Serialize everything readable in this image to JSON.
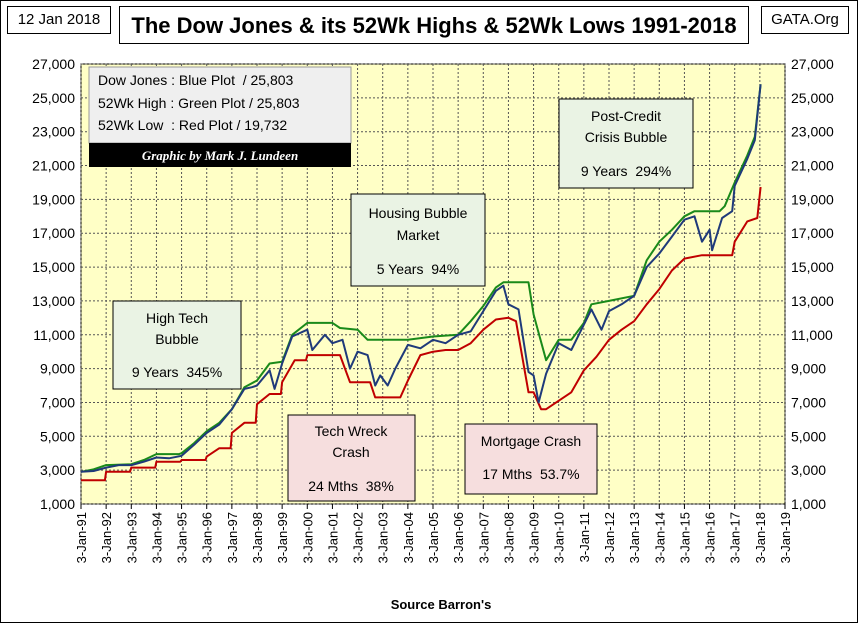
{
  "header": {
    "date": "12 Jan 2018",
    "title": "The Dow Jones & its 52Wk Highs & 52Wk Lows 1991-2018",
    "site": "GATA.Org"
  },
  "legend": {
    "lines": [
      "Dow Jones : Blue Plot  / 25,803",
      "52Wk High : Green Plot / 25,803",
      "52Wk Low  : Red Plot / 19,732"
    ],
    "credit": "Graphic by Mark J. Lundeen"
  },
  "annotations": {
    "high_tech": [
      "High Tech",
      "Bubble",
      "9 Years  345%"
    ],
    "housing": [
      "Housing Bubble",
      "Market",
      "5 Years  94%"
    ],
    "post_credit": [
      "Post-Credit",
      "Crisis Bubble",
      "9 Years  294%"
    ],
    "tech_wreck": [
      "Tech Wreck",
      "Crash",
      "24 Mths  38%"
    ],
    "mortgage": [
      "Mortgage Crash",
      "17 Mths  53.7%"
    ]
  },
  "colors": {
    "plot_bg": "#ffffc6",
    "dow": "#1f3a7a",
    "high": "#1a8a1a",
    "low": "#c00000",
    "note_green": "#eaf3e4",
    "note_pink": "#f6dede",
    "legend_bg": "#efefef"
  },
  "chart_data": {
    "type": "line",
    "xlabel": "Source Barron's",
    "ylabel": "",
    "ylim": [
      1000,
      27000
    ],
    "xlim": [
      1991,
      2019
    ],
    "grid": true,
    "y_ticks": [
      1000,
      3000,
      5000,
      7000,
      9000,
      11000,
      13000,
      15000,
      17000,
      19000,
      21000,
      23000,
      25000,
      27000
    ],
    "y_tick_labels": [
      "1,000",
      "3,000",
      "5,000",
      "7,000",
      "9,000",
      "11,000",
      "13,000",
      "15,000",
      "17,000",
      "19,000",
      "21,000",
      "23,000",
      "25,000",
      "27,000"
    ],
    "x_tick_labels": [
      "3-Jan-91",
      "3-Jan-92",
      "3-Jan-93",
      "3-Jan-94",
      "3-Jan-95",
      "3-Jan-96",
      "3-Jan-97",
      "3-Jan-98",
      "3-Jan-99",
      "3-Jan-00",
      "3-Jan-01",
      "3-Jan-02",
      "3-Jan-03",
      "3-Jan-04",
      "3-Jan-05",
      "3-Jan-06",
      "3-Jan-07",
      "3-Jan-08",
      "3-Jan-09",
      "3-Jan-10",
      "3-Jan-11",
      "3-Jan-12",
      "3-Jan-13",
      "3-Jan-14",
      "3-Jan-15",
      "3-Jan-16",
      "3-Jan-17",
      "3-Jan-18",
      "3-Jan-19"
    ],
    "series": [
      {
        "name": "Dow Jones",
        "x": [
          1991.0,
          1991.5,
          1992.0,
          1992.5,
          1993.0,
          1993.5,
          1994.0,
          1994.5,
          1995.0,
          1995.5,
          1996.0,
          1996.5,
          1997.0,
          1997.5,
          1997.8,
          1998.0,
          1998.5,
          1998.7,
          1999.0,
          1999.4,
          2000.0,
          2000.2,
          2000.7,
          2001.0,
          2001.4,
          2001.7,
          2002.0,
          2002.4,
          2002.7,
          2002.9,
          2003.2,
          2003.5,
          2004.0,
          2004.5,
          2005.0,
          2005.5,
          2006.0,
          2006.5,
          2007.0,
          2007.5,
          2007.8,
          2008.0,
          2008.4,
          2008.8,
          2009.0,
          2009.2,
          2009.5,
          2010.0,
          2010.5,
          2011.0,
          2011.3,
          2011.7,
          2012.0,
          2012.5,
          2013.0,
          2013.5,
          2014.0,
          2014.5,
          2015.0,
          2015.4,
          2015.7,
          2016.0,
          2016.1,
          2016.5,
          2016.9,
          2017.0,
          2017.5,
          2017.8,
          2018.03
        ],
        "y": [
          2900,
          2950,
          3150,
          3300,
          3300,
          3500,
          3750,
          3700,
          3850,
          4500,
          5200,
          5700,
          6600,
          7800,
          7900,
          8000,
          8900,
          7800,
          9300,
          10900,
          11300,
          10100,
          11000,
          10500,
          10700,
          9000,
          10000,
          9800,
          8000,
          8600,
          8000,
          9000,
          10400,
          10200,
          10700,
          10500,
          11000,
          11200,
          12400,
          13600,
          13900,
          12800,
          12500,
          8800,
          8600,
          7000,
          8700,
          10500,
          10100,
          11600,
          12500,
          11300,
          12400,
          12800,
          13300,
          15000,
          15800,
          16800,
          17800,
          18000,
          16500,
          17200,
          16000,
          17900,
          18300,
          19800,
          21400,
          22500,
          25803
        ]
      },
      {
        "name": "52Wk High",
        "x": [
          1991.0,
          1991.5,
          1992.0,
          1993.0,
          1993.5,
          1994.0,
          1994.9,
          1995.0,
          1995.5,
          1996.0,
          1996.5,
          1997.0,
          1997.5,
          1998.0,
          1998.5,
          1999.0,
          1999.4,
          2000.0,
          2001.0,
          2001.3,
          2002.0,
          2002.4,
          2003.0,
          2003.5,
          2004.0,
          2005.0,
          2006.0,
          2006.5,
          2007.0,
          2007.5,
          2007.8,
          2008.8,
          2009.0,
          2009.5,
          2010.0,
          2010.5,
          2011.0,
          2011.3,
          2012.0,
          2013.0,
          2013.5,
          2014.0,
          2014.5,
          2015.0,
          2015.4,
          2016.4,
          2016.6,
          2017.0,
          2017.5,
          2017.8,
          2018.03
        ],
        "y": [
          2900,
          3050,
          3300,
          3350,
          3600,
          3950,
          3950,
          4000,
          4600,
          5300,
          5800,
          6600,
          7900,
          8300,
          9300,
          9400,
          11000,
          11700,
          11700,
          11400,
          11300,
          10700,
          10700,
          10700,
          10700,
          10900,
          11000,
          11800,
          12700,
          13800,
          14100,
          14100,
          12200,
          9500,
          10700,
          10700,
          11700,
          12800,
          13000,
          13300,
          15400,
          16500,
          17200,
          18000,
          18300,
          18300,
          18600,
          20000,
          21600,
          22700,
          25803
        ]
      },
      {
        "name": "52Wk Low",
        "x": [
          1991.0,
          1991.95,
          1992.0,
          1992.95,
          1993.0,
          1993.95,
          1994.0,
          1994.95,
          1995.0,
          1995.95,
          1996.0,
          1996.5,
          1996.95,
          1997.0,
          1997.5,
          1997.95,
          1998.0,
          1998.5,
          1998.95,
          1999.0,
          1999.5,
          1999.95,
          2000.0,
          2001.3,
          2001.7,
          2002.5,
          2002.7,
          2003.7,
          2004.0,
          2004.5,
          2005.0,
          2005.5,
          2006.0,
          2006.5,
          2007.0,
          2007.5,
          2008.0,
          2008.3,
          2008.8,
          2009.0,
          2009.3,
          2009.5,
          2010.5,
          2011.0,
          2011.5,
          2012.0,
          2012.5,
          2013.0,
          2013.5,
          2014.0,
          2014.5,
          2015.0,
          2015.7,
          2016.3,
          2016.9,
          2017.0,
          2017.5,
          2017.9,
          2018.03
        ],
        "y": [
          2400,
          2400,
          2900,
          2900,
          3150,
          3150,
          3500,
          3500,
          3600,
          3600,
          3800,
          4300,
          4300,
          5200,
          5800,
          5800,
          6900,
          7500,
          7500,
          8200,
          9500,
          9500,
          9800,
          9800,
          8200,
          8200,
          7300,
          7300,
          8300,
          9800,
          10000,
          10100,
          10100,
          10500,
          11300,
          11900,
          12000,
          11800,
          7600,
          7600,
          6600,
          6600,
          7600,
          8900,
          9700,
          10700,
          11300,
          11800,
          12800,
          13700,
          14800,
          15500,
          15700,
          15700,
          15700,
          16500,
          17700,
          17900,
          19732
        ]
      }
    ]
  }
}
